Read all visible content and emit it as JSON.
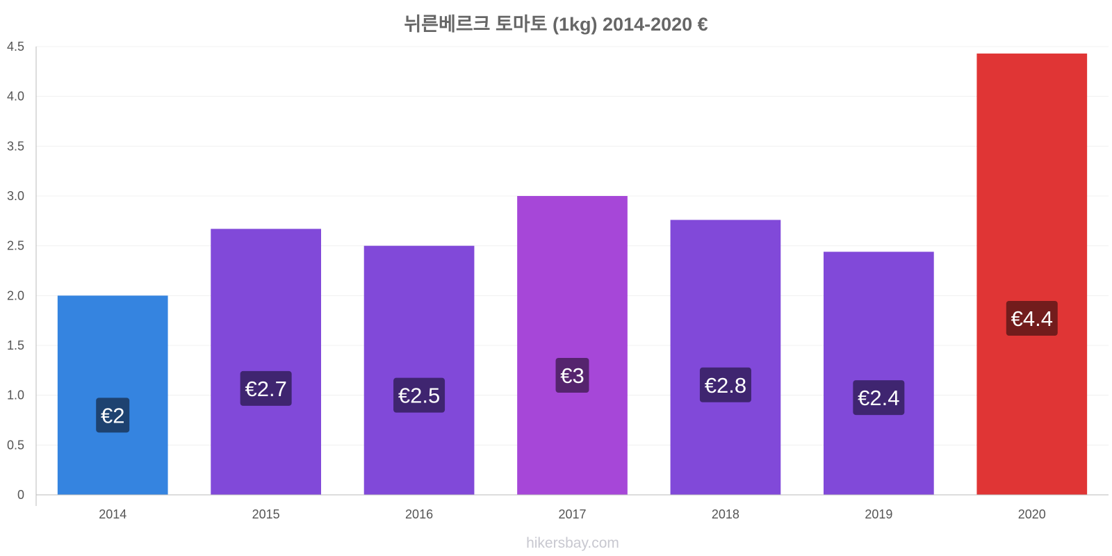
{
  "chart_data": {
    "type": "bar",
    "title": "뉘른베르크 토마토 (1kg) 2014-2020 €",
    "xlabel": "",
    "ylabel": "",
    "categories": [
      "2014",
      "2015",
      "2016",
      "2017",
      "2018",
      "2019",
      "2020"
    ],
    "values": [
      2.0,
      2.67,
      2.5,
      3.0,
      2.76,
      2.44,
      4.43
    ],
    "data_labels": [
      "€2",
      "€2.7",
      "€2.5",
      "€3",
      "€2.8",
      "€2.4",
      "€4.4"
    ],
    "ylim": [
      0,
      4.5
    ],
    "yticks": [
      0,
      0.5,
      1.0,
      1.5,
      2.0,
      2.5,
      3.0,
      3.5,
      4.0,
      4.5
    ],
    "ytick_labels": [
      "0",
      "0.5",
      "1.0",
      "1.5",
      "2.0",
      "2.5",
      "3.0",
      "3.5",
      "4.0",
      "4.5"
    ],
    "bar_colors": [
      "#3584e0",
      "#8149d9",
      "#8149d9",
      "#a647d8",
      "#8149d9",
      "#8149d9",
      "#e03535"
    ],
    "label_bg_colors": [
      "#1e4270",
      "#3f2570",
      "#3f2570",
      "#55246e",
      "#3f2570",
      "#3f2570",
      "#721c1c"
    ],
    "grid": true,
    "legend": "none"
  },
  "footer": {
    "watermark": "hikersbay.com"
  }
}
